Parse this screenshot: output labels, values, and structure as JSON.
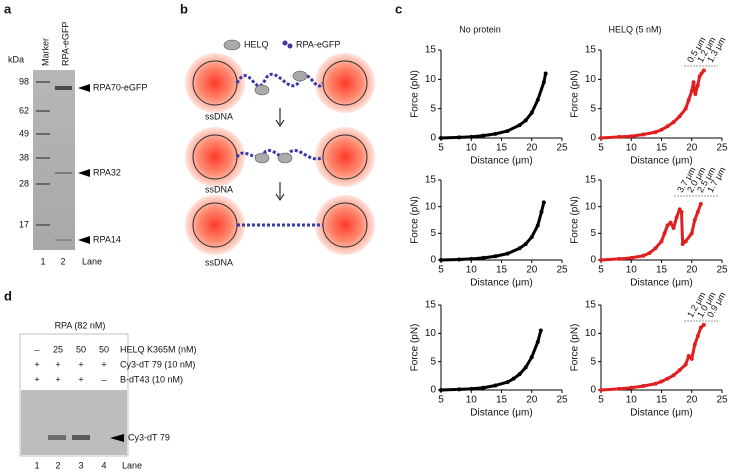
{
  "panel_labels": [
    "a",
    "b",
    "c",
    "d"
  ],
  "panel_a": {
    "unit": "kDa",
    "lanes": [
      "Marker",
      "RPA-eGFP"
    ],
    "markers": [
      "98",
      "62",
      "49",
      "38",
      "28",
      "17"
    ],
    "bands": [
      "RPA70-eGFP",
      "RPA32",
      "RPA14"
    ],
    "lane_numbers": [
      "1",
      "2"
    ],
    "lane_title": "Lane"
  },
  "panel_b": {
    "legend": [
      "HELQ",
      "RPA-eGFP"
    ],
    "bead_labels": [
      "ssDNA",
      "ssDNA",
      "ssDNA"
    ]
  },
  "panel_c": {
    "columns": [
      "No protein",
      "HELQ (5 nM)"
    ]
  },
  "chart_data": [
    {
      "type": "scatter",
      "xlabel": "Distance (μm)",
      "ylabel": "Force (pN)",
      "xlim": [
        5,
        25
      ],
      "xticks": [
        5,
        10,
        15,
        20,
        25
      ],
      "ylim": [
        0,
        15
      ],
      "yticks": [
        0,
        5,
        10,
        15
      ],
      "series": [
        {
          "color": "#000000",
          "x": [
            5,
            8,
            10,
            12,
            14,
            16,
            18,
            19,
            20,
            21,
            22,
            22.3
          ],
          "values": [
            0,
            0.1,
            0.2,
            0.4,
            0.7,
            1.2,
            2.2,
            3,
            4.3,
            6.5,
            9.5,
            11
          ]
        }
      ]
    },
    {
      "type": "scatter",
      "xlabel": "Distance (μm)",
      "ylabel": "Force (pN)",
      "xlim": [
        5,
        25
      ],
      "xticks": [
        5,
        10,
        15,
        20,
        25
      ],
      "ylim": [
        0,
        15
      ],
      "yticks": [
        0,
        5,
        10,
        15
      ],
      "annotations": [
        "0.5 μm",
        "1.2 μm",
        "1.3 μm"
      ],
      "series": [
        {
          "color": "#e02020",
          "x": [
            5,
            8,
            10,
            12,
            14,
            15,
            16,
            17,
            18,
            19,
            19.5,
            20,
            20.3,
            20.6,
            21,
            21.3,
            21.6,
            22
          ],
          "values": [
            0,
            0.2,
            0.3,
            0.6,
            1,
            1.4,
            2,
            2.7,
            3.7,
            5,
            6.5,
            8,
            9.5,
            7.5,
            9,
            10.5,
            11,
            11.5
          ]
        }
      ]
    },
    {
      "type": "scatter",
      "xlabel": "Distance (μm)",
      "ylabel": "Force (pN)",
      "xlim": [
        5,
        25
      ],
      "xticks": [
        5,
        10,
        15,
        20,
        25
      ],
      "ylim": [
        0,
        15
      ],
      "yticks": [
        0,
        5,
        10,
        15
      ],
      "series": [
        {
          "color": "#000000",
          "x": [
            5,
            8,
            10,
            12,
            14,
            16,
            18,
            19,
            20,
            21,
            21.6,
            22
          ],
          "values": [
            0,
            0.1,
            0.2,
            0.4,
            0.7,
            1.2,
            2.2,
            3,
            4.3,
            6.5,
            9,
            10.8
          ]
        }
      ]
    },
    {
      "type": "scatter",
      "xlabel": "Distance (μm)",
      "ylabel": "Force (pN)",
      "xlim": [
        5,
        25
      ],
      "xticks": [
        5,
        10,
        15,
        20,
        25
      ],
      "ylim": [
        0,
        15
      ],
      "yticks": [
        0,
        5,
        10,
        15
      ],
      "annotations": [
        "3.7 μm",
        "2.0 μm",
        "2.5 μm",
        "1.7 μm"
      ],
      "series": [
        {
          "color": "#e02020",
          "x": [
            5,
            8,
            10,
            12,
            13,
            14,
            15,
            15.5,
            16,
            16.5,
            17,
            17.5,
            18,
            18.3,
            18.5,
            19,
            20,
            20.5,
            21,
            21.5
          ],
          "values": [
            0,
            0.2,
            0.4,
            0.8,
            1.3,
            2.2,
            3.5,
            5,
            6.5,
            7,
            6,
            8,
            9.5,
            9,
            3,
            3.5,
            5,
            7.5,
            9,
            10.5
          ]
        }
      ]
    },
    {
      "type": "scatter",
      "xlabel": "Distance (μm)",
      "ylabel": "Force (pN)",
      "xlim": [
        5,
        25
      ],
      "xticks": [
        5,
        10,
        15,
        20,
        25
      ],
      "ylim": [
        0,
        15
      ],
      "yticks": [
        0,
        5,
        10,
        15
      ],
      "series": [
        {
          "color": "#000000",
          "x": [
            5,
            8,
            10,
            12,
            14,
            16,
            17,
            18,
            19,
            20,
            21,
            21.5
          ],
          "values": [
            0,
            0.1,
            0.2,
            0.4,
            0.8,
            1.4,
            2,
            2.8,
            4,
            5.8,
            8.5,
            10.5
          ]
        }
      ]
    },
    {
      "type": "scatter",
      "xlabel": "Distance (μm)",
      "ylabel": "Force (pN)",
      "xlim": [
        5,
        25
      ],
      "xticks": [
        5,
        10,
        15,
        20,
        25
      ],
      "ylim": [
        0,
        15
      ],
      "yticks": [
        0,
        5,
        10,
        15
      ],
      "annotations": [
        "1.2 μm",
        "1.0 μm",
        "0.9 μm"
      ],
      "series": [
        {
          "color": "#e02020",
          "x": [
            5,
            8,
            10,
            12,
            14,
            15,
            16,
            17,
            18,
            19,
            19.5,
            20,
            20.5,
            21,
            21.5,
            22
          ],
          "values": [
            0,
            0.2,
            0.4,
            0.7,
            1.1,
            1.5,
            2,
            2.6,
            3.5,
            4.5,
            6,
            5.5,
            8,
            9.5,
            11,
            11.5
          ]
        }
      ]
    }
  ],
  "panel_d": {
    "title": "RPA (82 nM)",
    "rows": [
      {
        "cells": [
          "–",
          "25",
          "50",
          "50"
        ],
        "label": "HELQ K365M (nM)"
      },
      {
        "cells": [
          "+",
          "+",
          "+",
          "+"
        ],
        "label": "Cy3-dT 79 (10 nM)"
      },
      {
        "cells": [
          "+",
          "+",
          "+",
          "–"
        ],
        "label": "B-dT43 (10 nM)"
      }
    ],
    "band": "Cy3-dT 79",
    "lane_numbers": [
      "1",
      "2",
      "3",
      "4"
    ],
    "lane_title": "Lane"
  }
}
